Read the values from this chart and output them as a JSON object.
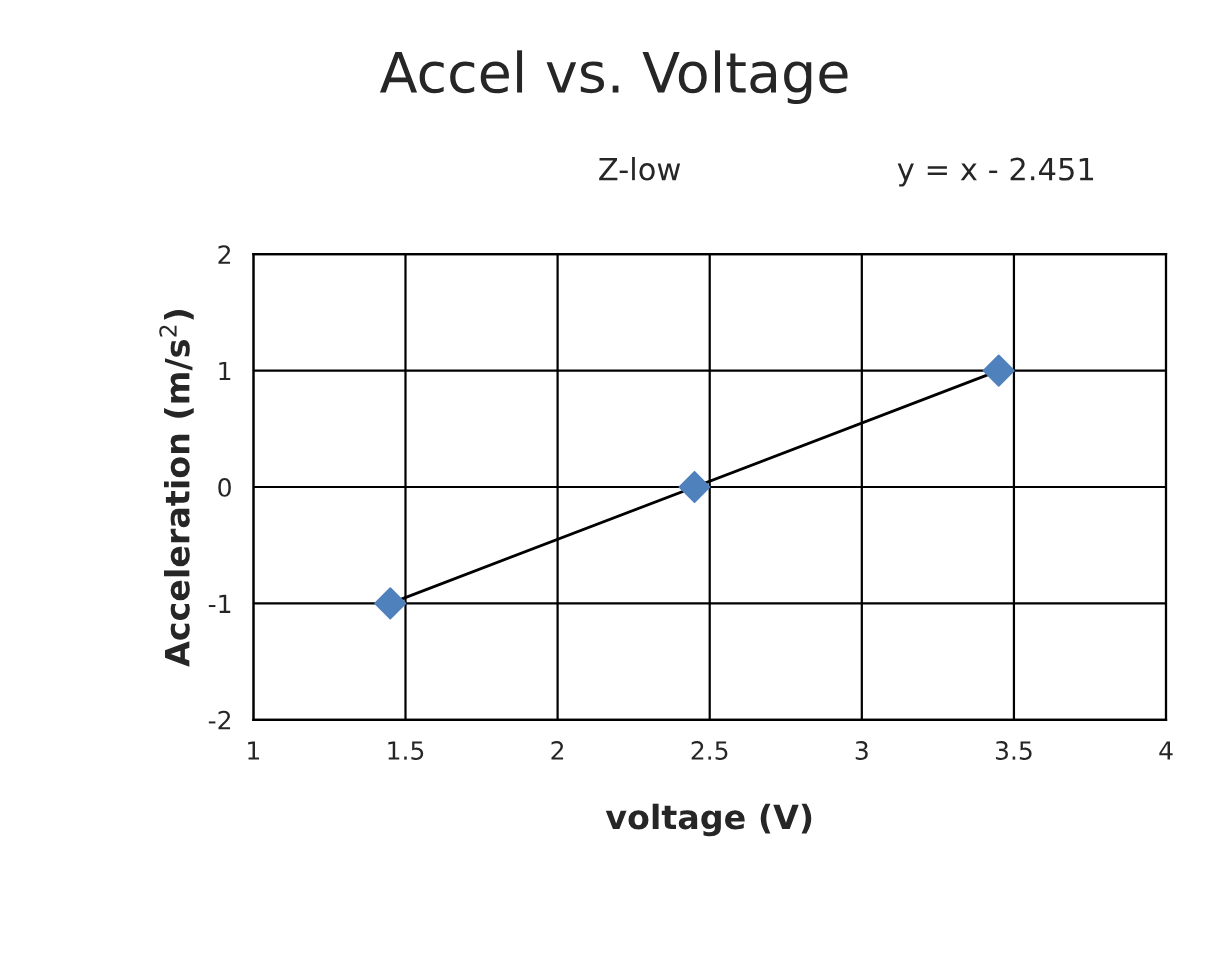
{
  "chart_data": {
    "type": "scatter",
    "title": "Accel vs. Voltage",
    "xlabel": "voltage (V)",
    "ylabel": "Acceleration (m/s$^{2}$)",
    "annotations": [
      "Z-low",
      "y = x - 2.451"
    ],
    "series": [
      {
        "marker": "diamond",
        "color": "#4f81bd",
        "x": [
          1.45,
          2.45,
          3.45
        ],
        "values": [
          -1,
          0,
          1
        ]
      },
      {
        "type": "line",
        "marker": "none",
        "color": "#000000",
        "x": [
          1.45,
          3.45
        ],
        "values": [
          -1,
          1
        ]
      }
    ],
    "grid": true,
    "legend": false,
    "xlim": [
      1,
      4
    ],
    "xticks": [
      1,
      1.5,
      2,
      2.5,
      3,
      3.5,
      4
    ],
    "ylim": [
      -2,
      2
    ],
    "yticks": [
      -2,
      -1,
      0,
      1,
      2
    ]
  }
}
